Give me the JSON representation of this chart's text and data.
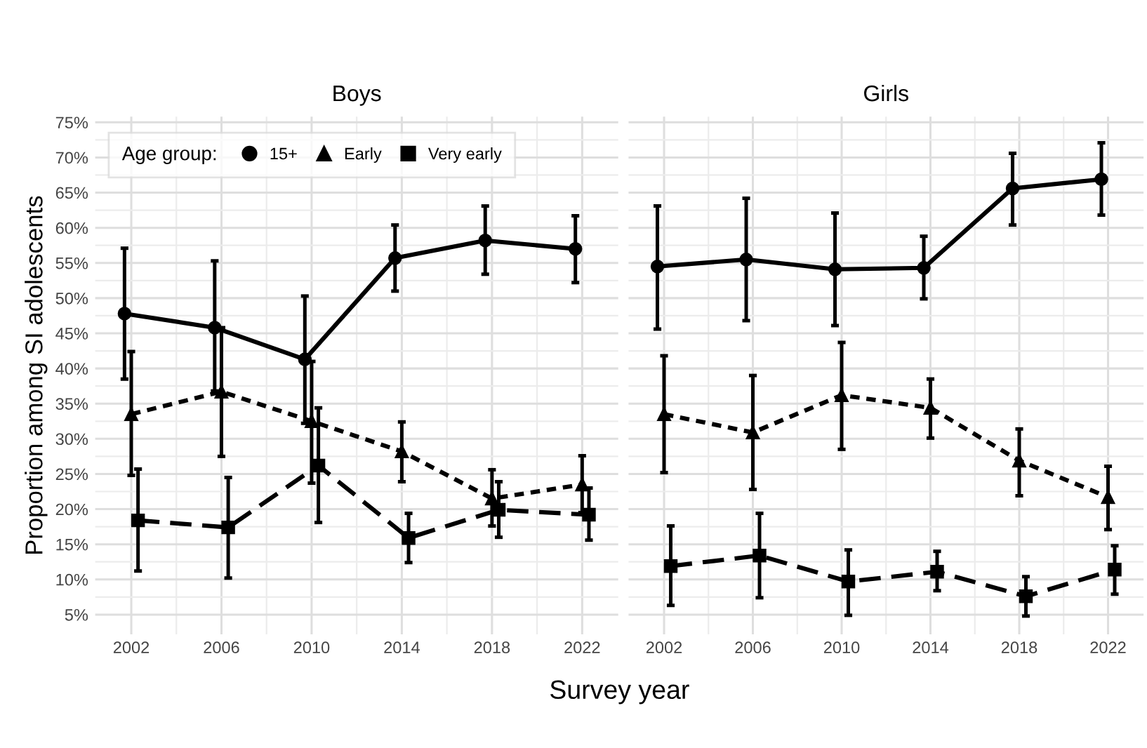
{
  "chart_data": [
    {
      "type": "line",
      "title": "Boys",
      "xlabel": "Survey year",
      "ylabel": "Proportion among SI adolescents",
      "legend": "top left",
      "legend_title": "Age group:",
      "grid": true,
      "xlim": [
        2000.4,
        2023.6
      ],
      "xticks": [
        2002,
        2006,
        2010,
        2014,
        2018,
        2022
      ],
      "ylim": [
        2.2,
        75.8
      ],
      "yticks": [
        {
          "value": 5,
          "label": "5%"
        },
        {
          "value": 10,
          "label": "10%"
        },
        {
          "value": 15,
          "label": "15%"
        },
        {
          "value": 20,
          "label": "20%"
        },
        {
          "value": 25,
          "label": "25%"
        },
        {
          "value": 30,
          "label": "30%"
        },
        {
          "value": 35,
          "label": "35%"
        },
        {
          "value": 40,
          "label": "40%"
        },
        {
          "value": 45,
          "label": "45%"
        },
        {
          "value": 50,
          "label": "50%"
        },
        {
          "value": 55,
          "label": "55%"
        },
        {
          "value": 60,
          "label": "60%"
        },
        {
          "value": 65,
          "label": "65%"
        },
        {
          "value": 70,
          "label": "70%"
        },
        {
          "value": 75,
          "label": "75%"
        }
      ],
      "series": [
        {
          "name": "15+",
          "color": "#000000",
          "marker": "circle",
          "line_style": "solid",
          "x": [
            2001.7,
            2005.7,
            2009.7,
            2013.7,
            2017.7,
            2021.7
          ],
          "values": [
            47.8,
            45.8,
            41.3,
            55.7,
            58.2,
            57.0
          ],
          "errors": [
            [
              38.5,
              57.1
            ],
            [
              36.8,
              55.3
            ],
            [
              32.2,
              50.3
            ],
            [
              51.0,
              60.4
            ],
            [
              53.4,
              63.1
            ],
            [
              52.2,
              61.7
            ]
          ]
        },
        {
          "name": "Early",
          "color": "#000000",
          "marker": "triangle",
          "line_style": "dotted",
          "x": [
            2002,
            2006,
            2010,
            2014,
            2018,
            2022
          ],
          "values": [
            33.5,
            36.7,
            32.5,
            28.2,
            21.5,
            23.5
          ],
          "errors": [
            [
              24.8,
              42.4
            ],
            [
              27.5,
              45.8
            ],
            [
              23.7,
              41.0
            ],
            [
              23.9,
              32.4
            ],
            [
              17.6,
              25.6
            ],
            [
              19.5,
              27.6
            ]
          ]
        },
        {
          "name": "Very early",
          "color": "#000000",
          "marker": "square",
          "line_style": "dashed",
          "x": [
            2002.3,
            2006.3,
            2010.3,
            2014.3,
            2018.3,
            2022.3
          ],
          "values": [
            18.4,
            17.4,
            26.2,
            15.9,
            19.9,
            19.2
          ],
          "errors": [
            [
              11.2,
              25.7
            ],
            [
              10.2,
              24.5
            ],
            [
              18.1,
              34.4
            ],
            [
              12.4,
              19.4
            ],
            [
              16.0,
              23.9
            ],
            [
              15.6,
              23.0
            ]
          ]
        }
      ]
    },
    {
      "type": "line",
      "title": "Girls",
      "grid": true,
      "tick_labels": "x",
      "xlim": [
        2000.4,
        2023.6
      ],
      "xticks": [
        2002,
        2006,
        2010,
        2014,
        2018,
        2022
      ],
      "ylim": [
        2.2,
        75.8
      ],
      "yticks": [
        {
          "value": 5,
          "label": null
        },
        {
          "value": 10,
          "label": null
        },
        {
          "value": 15,
          "label": null
        },
        {
          "value": 20,
          "label": null
        },
        {
          "value": 25,
          "label": null
        },
        {
          "value": 30,
          "label": null
        },
        {
          "value": 35,
          "label": null
        },
        {
          "value": 40,
          "label": null
        },
        {
          "value": 45,
          "label": null
        },
        {
          "value": 50,
          "label": null
        },
        {
          "value": 55,
          "label": null
        },
        {
          "value": 60,
          "label": null
        },
        {
          "value": 65,
          "label": null
        },
        {
          "value": 70,
          "label": null
        },
        {
          "value": 75,
          "label": null
        }
      ],
      "series": [
        {
          "color": "#000000",
          "marker": "circle",
          "line_style": "solid",
          "x": [
            2001.7,
            2005.7,
            2009.7,
            2013.7,
            2017.7,
            2021.7
          ],
          "values": [
            54.5,
            55.5,
            54.1,
            54.3,
            65.6,
            66.9
          ],
          "errors": [
            [
              45.6,
              63.1
            ],
            [
              46.8,
              64.2
            ],
            [
              46.1,
              62.1
            ],
            [
              49.9,
              58.8
            ],
            [
              60.4,
              70.6
            ],
            [
              61.8,
              72.1
            ]
          ]
        },
        {
          "color": "#000000",
          "marker": "triangle",
          "line_style": "dotted",
          "x": [
            2002,
            2006,
            2010,
            2014,
            2018,
            2022
          ],
          "values": [
            33.5,
            30.9,
            36.2,
            34.4,
            26.9,
            21.7
          ],
          "errors": [
            [
              25.2,
              41.8
            ],
            [
              22.8,
              39.0
            ],
            [
              28.5,
              43.7
            ],
            [
              30.1,
              38.5
            ],
            [
              21.9,
              31.4
            ],
            [
              17.1,
              26.1
            ]
          ]
        },
        {
          "color": "#000000",
          "marker": "square",
          "line_style": "dashed",
          "x": [
            2002.3,
            2006.3,
            2010.3,
            2014.3,
            2018.3,
            2022.3
          ],
          "values": [
            11.9,
            13.4,
            9.7,
            11.1,
            7.6,
            11.4
          ],
          "errors": [
            [
              6.3,
              17.6
            ],
            [
              7.4,
              19.4
            ],
            [
              4.9,
              14.2
            ],
            [
              8.4,
              14.0
            ],
            [
              4.8,
              10.4
            ],
            [
              7.9,
              14.8
            ]
          ]
        }
      ]
    }
  ]
}
